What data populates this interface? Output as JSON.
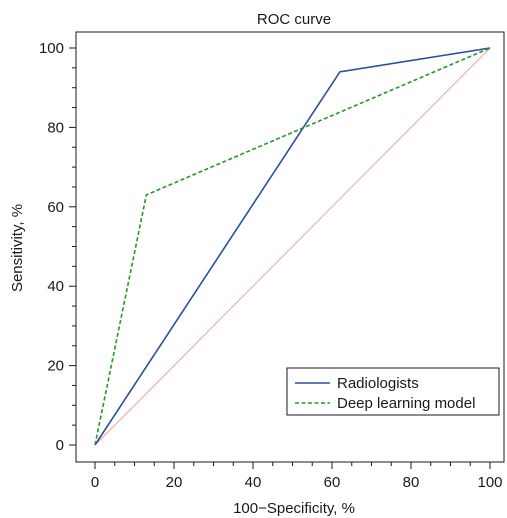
{
  "chart_data": {
    "type": "line",
    "title": "ROC curve",
    "xlabel": "100−Specificity, %",
    "ylabel": "Sensitivity, %",
    "xlim": [
      0,
      100
    ],
    "ylim": [
      0,
      100
    ],
    "xticks": [
      0,
      20,
      40,
      60,
      80,
      100
    ],
    "yticks": [
      0,
      20,
      40,
      60,
      80,
      100
    ],
    "xtick_labels": [
      "0",
      "20",
      "40",
      "60",
      "80",
      "100"
    ],
    "ytick_labels": [
      "0",
      "20",
      "40",
      "60",
      "80",
      "100"
    ],
    "grid": false,
    "legend_position": "bottom-right",
    "reference_line": {
      "x": [
        0,
        100
      ],
      "y": [
        0,
        100
      ],
      "color": "#f0a0a0"
    },
    "series": [
      {
        "name": "Radiologists",
        "x": [
          0,
          62,
          100
        ],
        "y": [
          0,
          94,
          100
        ],
        "color": "#2b4f9e",
        "style": "solid"
      },
      {
        "name": "Deep learning model",
        "x": [
          0,
          13,
          100
        ],
        "y": [
          0,
          63,
          100
        ],
        "color": "#1e9a1e",
        "style": "dashed"
      }
    ]
  }
}
